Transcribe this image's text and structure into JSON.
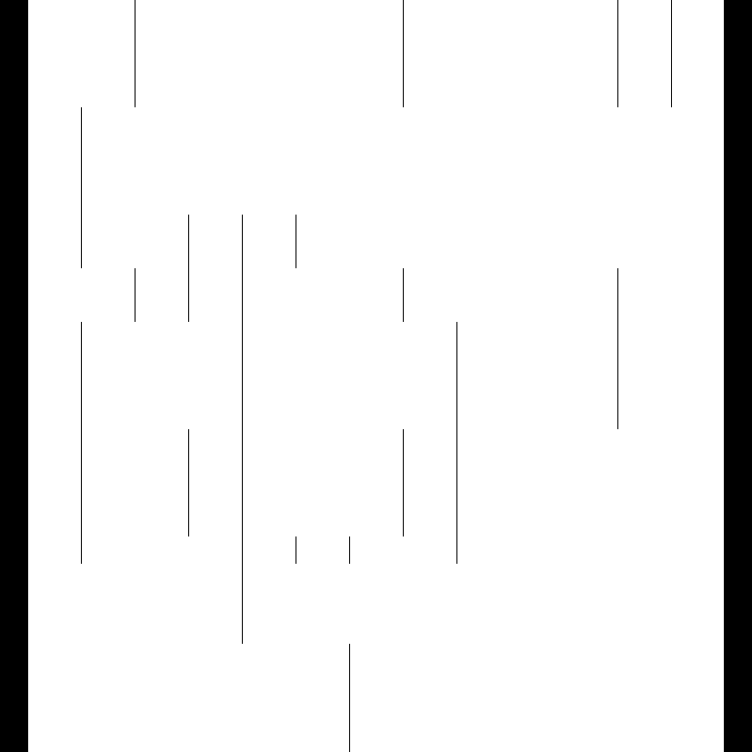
{
  "colors": {
    "background": "#ffffff",
    "border": "#000000",
    "line": "#000000"
  }
}
